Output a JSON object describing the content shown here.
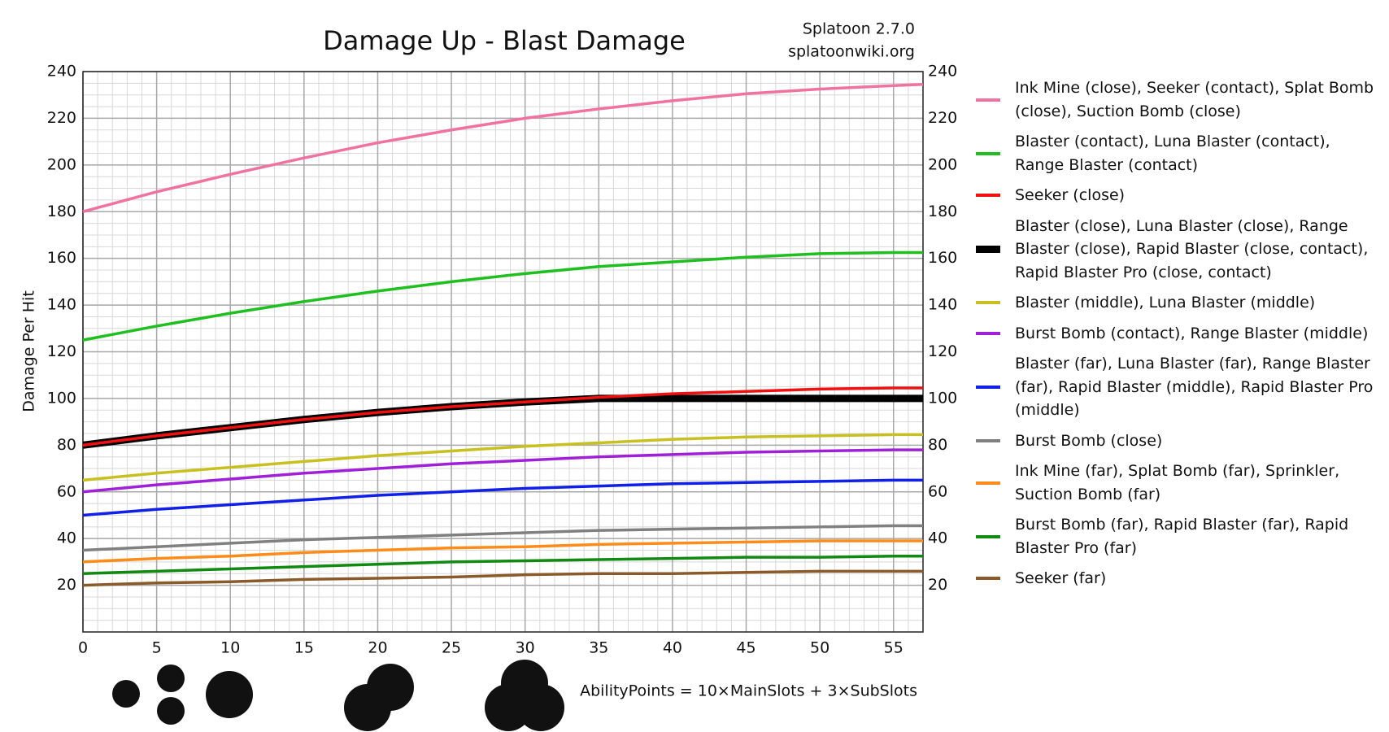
{
  "chart_data": {
    "type": "line",
    "title": "Damage Up - Blast Damage",
    "annotations": [
      "Splatoon 2.7.0",
      "splatoonwiki.org",
      "AbilityPoints = 10×MainSlots + 3×SubSlots"
    ],
    "y_label": "Damage Per Hit",
    "x": [
      0,
      5,
      10,
      15,
      20,
      25,
      30,
      35,
      40,
      45,
      50,
      55,
      57
    ],
    "xlim": [
      0,
      57
    ],
    "xticks": [
      0,
      5,
      10,
      15,
      20,
      25,
      30,
      35,
      40,
      45,
      50,
      55
    ],
    "ylim": [
      0,
      240
    ],
    "yticks": [
      20,
      40,
      60,
      80,
      100,
      120,
      140,
      160,
      180,
      200,
      220,
      240
    ],
    "grid": true,
    "series": [
      {
        "name": "Ink Mine (close), Seeker (contact), Splat Bomb (close), Suction Bomb (close)",
        "color": "#f0739f",
        "values": [
          180,
          188.5,
          196,
          203,
          209.5,
          215,
          220,
          224,
          227.5,
          230.5,
          232.5,
          234,
          234.5
        ]
      },
      {
        "name": "Blaster (contact), Luna Blaster (contact), Range Blaster (contact)",
        "color": "#1fbf1f",
        "values": [
          125,
          131,
          136.5,
          141.5,
          146,
          150,
          153.5,
          156.5,
          158.5,
          160.5,
          162,
          162.5,
          162.5
        ]
      },
      {
        "name": "Seeker (close)",
        "color": "#f01010",
        "values": [
          80,
          84,
          87.5,
          91,
          94,
          96.5,
          98.5,
          100.5,
          102,
          103,
          104,
          104.5,
          104.5
        ]
      },
      {
        "name": "Blaster (close), Luna Blaster (close), Range Blaster (close), Rapid Blaster (close, contact), Rapid Blaster Pro (close, contact)",
        "color": "#000000",
        "values": [
          80,
          84,
          87.5,
          91,
          94,
          96.5,
          98.5,
          100,
          100,
          100,
          100,
          100,
          100
        ]
      },
      {
        "name": "Blaster (middle), Luna Blaster (middle)",
        "color": "#c8c020",
        "values": [
          65,
          68,
          70.5,
          73,
          75.5,
          77.5,
          79.5,
          81,
          82.5,
          83.5,
          84,
          84.5,
          84.5
        ]
      },
      {
        "name": "Burst Bomb (contact), Range Blaster (middle)",
        "color": "#a020d8",
        "values": [
          60,
          63,
          65.5,
          68,
          70,
          72,
          73.5,
          75,
          76,
          77,
          77.5,
          78,
          78
        ]
      },
      {
        "name": "Blaster (far), Luna Blaster (far), Range Blaster (far), Rapid Blaster (middle), Rapid Blaster Pro (middle)",
        "color": "#1020e8",
        "values": [
          50,
          52.5,
          54.5,
          56.5,
          58.5,
          60,
          61.5,
          62.5,
          63.5,
          64,
          64.5,
          65,
          65
        ]
      },
      {
        "name": "Burst Bomb (close)",
        "color": "#808080",
        "values": [
          35,
          36.5,
          38,
          39.5,
          40.5,
          41.5,
          42.5,
          43.5,
          44,
          44.5,
          45,
          45.5,
          45.5
        ]
      },
      {
        "name": "Ink Mine (far), Splat Bomb (far), Sprinkler, Suction Bomb (far)",
        "color": "#ff8c1a",
        "values": [
          30,
          31.5,
          32.5,
          34,
          35,
          36,
          36.5,
          37.5,
          38,
          38.5,
          39,
          39,
          39
        ]
      },
      {
        "name": "Burst Bomb (far), Rapid Blaster (far), Rapid Blaster Pro (far)",
        "color": "#108a10",
        "values": [
          25,
          26,
          27,
          28,
          29,
          30,
          30.5,
          31,
          31.5,
          32,
          32,
          32.5,
          32.5
        ]
      },
      {
        "name": "Seeker (far)",
        "color": "#8b5a2b",
        "values": [
          20,
          21,
          21.5,
          22.5,
          23,
          23.5,
          24.5,
          25,
          25,
          25.5,
          26,
          26,
          26
        ]
      }
    ]
  }
}
